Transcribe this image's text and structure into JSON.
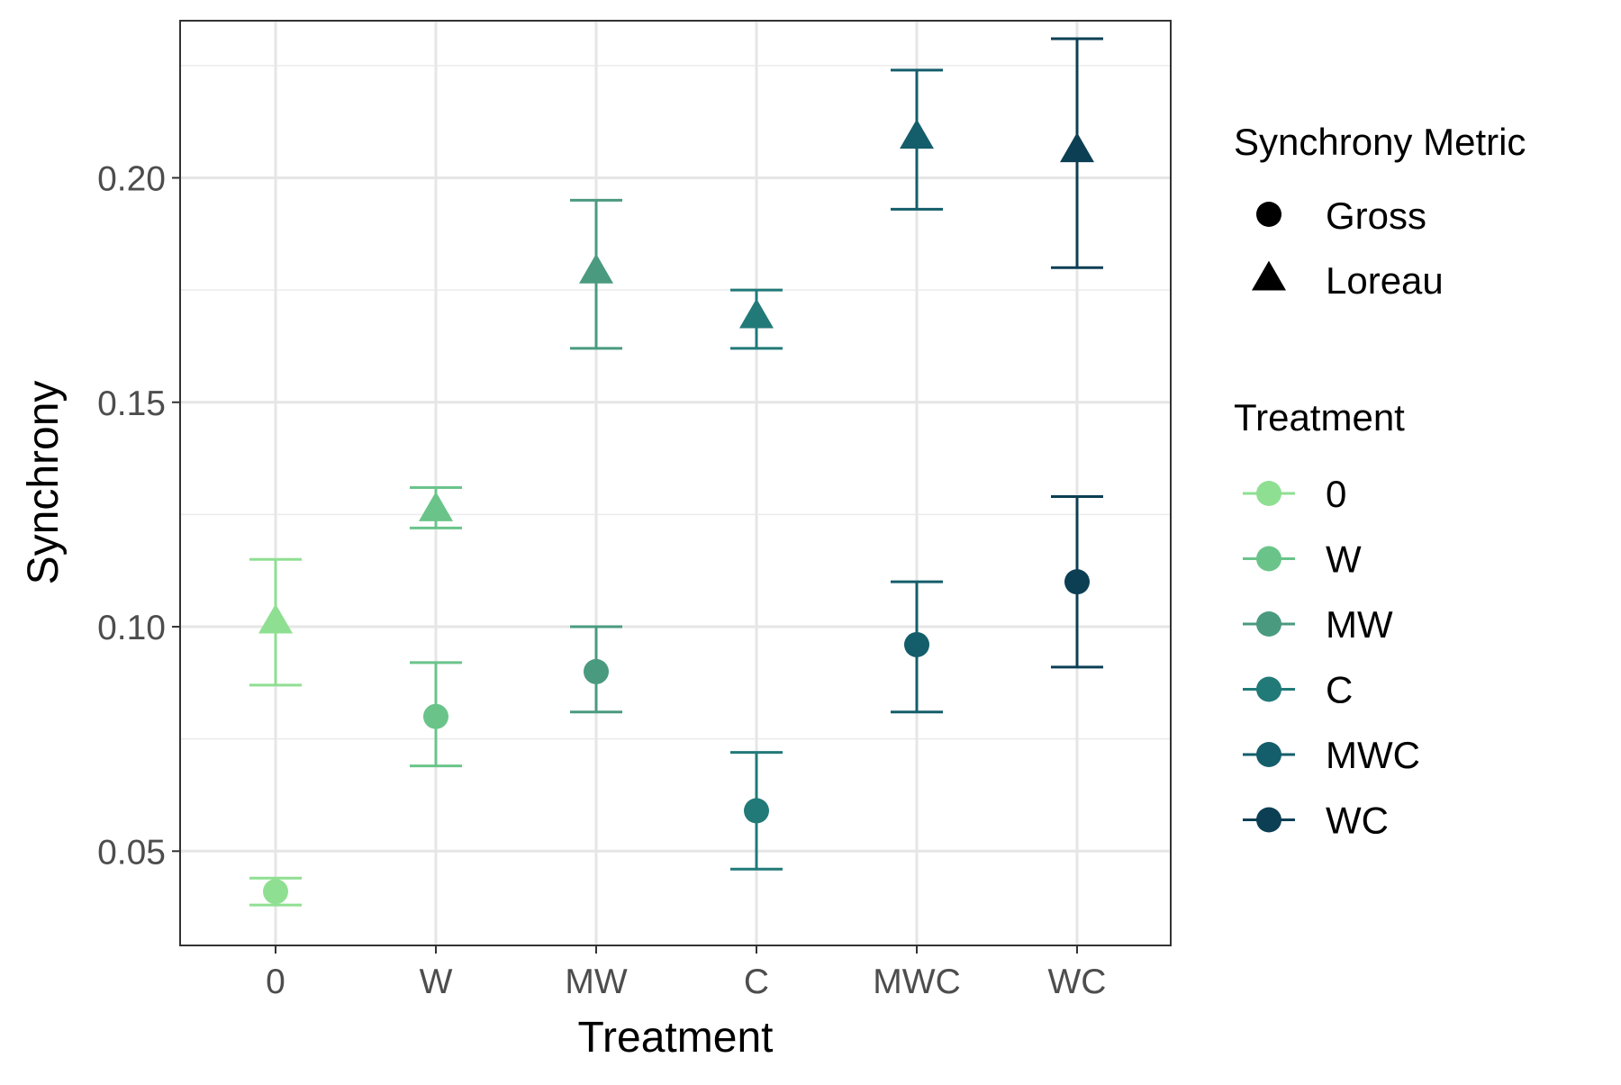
{
  "chart_data": {
    "type": "scatter",
    "xlabel": "Treatment",
    "ylabel": "Synchrony",
    "categories": [
      "0",
      "W",
      "MW",
      "C",
      "MWC",
      "WC"
    ],
    "ylim": [
      0.029,
      0.235
    ],
    "yticks": [
      0.05,
      0.1,
      0.15,
      0.2
    ],
    "ytick_labels": [
      "0.05",
      "0.10",
      "0.15",
      "0.20"
    ],
    "grid": true,
    "legend_placement": "right",
    "colors": {
      "0": "#8fdf92",
      "W": "#6ac48a",
      "MW": "#4a9a80",
      "C": "#217a78",
      "MWC": "#145e6b",
      "WC": "#0c3f54"
    },
    "series": [
      {
        "name": "Gross",
        "shape": "circle",
        "values": [
          0.041,
          0.08,
          0.09,
          0.059,
          0.096,
          0.11
        ],
        "lower": [
          0.038,
          0.069,
          0.081,
          0.046,
          0.081,
          0.091
        ],
        "upper": [
          0.044,
          0.092,
          0.1,
          0.072,
          0.11,
          0.129
        ]
      },
      {
        "name": "Loreau",
        "shape": "triangle",
        "values": [
          0.101,
          0.126,
          0.179,
          0.169,
          0.209,
          0.206
        ],
        "lower": [
          0.087,
          0.122,
          0.162,
          0.162,
          0.193,
          0.18
        ],
        "upper": [
          0.115,
          0.131,
          0.195,
          0.175,
          0.224,
          0.231
        ]
      }
    ],
    "legend": {
      "shape_title": "Synchrony Metric",
      "shape_items": [
        "Gross",
        "Loreau"
      ],
      "color_title": "Treatment",
      "color_items": [
        "0",
        "W",
        "MW",
        "C",
        "MWC",
        "WC"
      ]
    }
  }
}
